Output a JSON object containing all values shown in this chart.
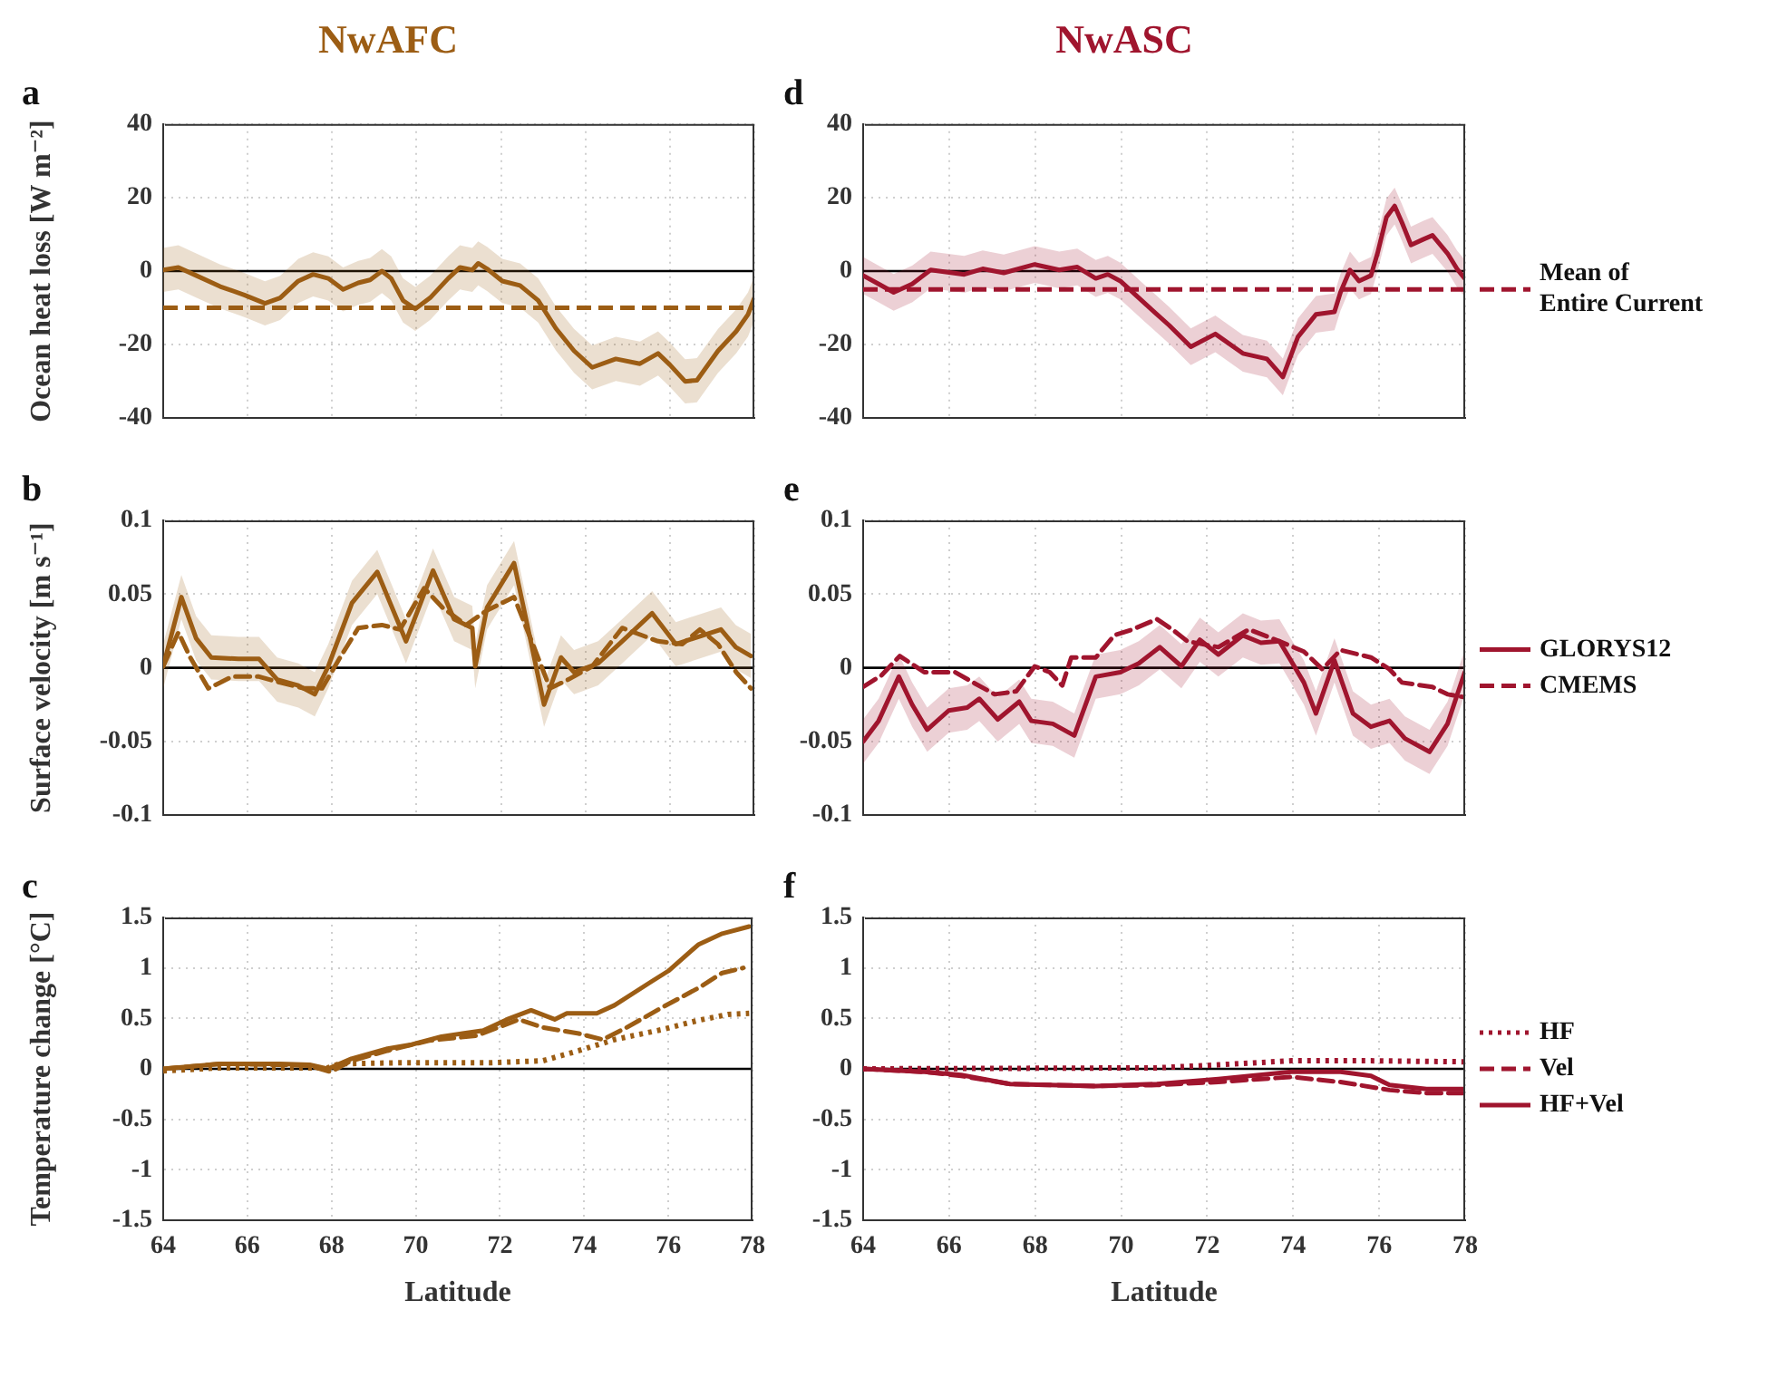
{
  "chart_data": [
    {
      "type": "line",
      "title": "NwAFC",
      "subtitle": "a",
      "ylabel": "Ocean heat loss [W m⁻²]",
      "xlim": [
        64,
        78
      ],
      "xticks": [
        64,
        66,
        68,
        70,
        72,
        74,
        76,
        78
      ],
      "ylim": [
        -40,
        40
      ],
      "yticks": [
        -40,
        -20,
        0,
        20,
        40
      ],
      "grid": true,
      "tick_labels": "y",
      "ref_lines": [
        {
          "axis": "y",
          "value": 0,
          "color": "#000000"
        },
        {
          "axis": "y",
          "value": -10,
          "color": "#9c5d14",
          "line_style": "dashed"
        }
      ],
      "series": [
        {
          "color": "#9c5d14",
          "line_style": "solid",
          "x": [
            64,
            64.36,
            64.78,
            65.35,
            65.92,
            66.41,
            66.77,
            67.2,
            67.55,
            67.91,
            68.26,
            68.62,
            68.9,
            69.18,
            69.4,
            69.68,
            69.97,
            70.32,
            70.75,
            71.03,
            71.32,
            71.46,
            71.67,
            72.03,
            72.45,
            72.88,
            73.3,
            73.73,
            74.16,
            74.72,
            75.29,
            75.72,
            76,
            76.36,
            76.64,
            77.14,
            77.57,
            77.85,
            78
          ],
          "values": [
            0.3,
            1,
            -1.2,
            -4.2,
            -6.5,
            -8.8,
            -7.3,
            -2.7,
            -0.9,
            -2,
            -5,
            -3.2,
            -2.4,
            0,
            -2,
            -8,
            -10.3,
            -7.3,
            -2,
            1,
            0.3,
            2.1,
            0.6,
            -2.7,
            -3.9,
            -8,
            -15.6,
            -21.7,
            -26.2,
            -23.9,
            -25.2,
            -22.4,
            -25.5,
            -30,
            -29.7,
            -21.7,
            -16.4,
            -11.8,
            -7.3
          ],
          "lower": [
            -5.7,
            -5,
            -7.2,
            -10.2,
            -12.5,
            -14.8,
            -13.3,
            -8.7,
            -6.9,
            -8,
            -11,
            -9.2,
            -8.4,
            -6,
            -8,
            -14,
            -16.3,
            -13.3,
            -8,
            -5,
            -5.7,
            -3.9,
            -5.4,
            -8.7,
            -9.9,
            -14,
            -21.6,
            -27.7,
            -32.2,
            -29.9,
            -31.2,
            -28.4,
            -31.5,
            -36,
            -35.7,
            -27.7,
            -22.4,
            -17.8,
            -13.3
          ],
          "upper": [
            6.3,
            7,
            4.8,
            1.8,
            -0.5,
            -2.8,
            -1.3,
            3.3,
            5.1,
            4,
            1,
            2.8,
            3.6,
            6,
            4,
            -2,
            -4.3,
            -1.3,
            4,
            7,
            6.3,
            8.1,
            6.6,
            3.3,
            2.1,
            -2,
            -9.6,
            -15.7,
            -20.2,
            -17.9,
            -19.2,
            -16.4,
            -19.5,
            -24,
            -23.7,
            -15.7,
            -10.4,
            -5.8,
            -1.3
          ]
        }
      ]
    },
    {
      "type": "line",
      "subtitle": "b",
      "ylabel": "Surface velocity [m s⁻¹]",
      "xlim": [
        64,
        78
      ],
      "xticks": [
        64,
        66,
        68,
        70,
        72,
        74,
        76,
        78
      ],
      "ylim": [
        -0.1,
        0.1
      ],
      "yticks": [
        -0.1,
        -0.05,
        0,
        0.05,
        0.1
      ],
      "grid": true,
      "tick_labels": "y",
      "ref_lines": [
        {
          "axis": "y",
          "value": 0,
          "color": "#000000"
        }
      ],
      "series": [
        {
          "color": "#9c5d14",
          "line_style": "solid",
          "x": [
            64,
            64.43,
            64.78,
            65.14,
            65.78,
            66.27,
            66.7,
            67.2,
            67.59,
            67.91,
            68.47,
            69.07,
            69.75,
            70.39,
            70.89,
            71.32,
            71.39,
            71.67,
            72.31,
            72.66,
            73.02,
            73.42,
            73.73,
            74.3,
            74.87,
            75.58,
            76.14,
            76.78,
            77.21,
            77.56,
            77.92
          ],
          "values": [
            0.001,
            0.048,
            0.02,
            0.007,
            0.006,
            0.006,
            -0.008,
            -0.012,
            -0.018,
            0.001,
            0.044,
            0.065,
            0.018,
            0.066,
            0.033,
            0.027,
            0.001,
            0.041,
            0.071,
            0.024,
            -0.025,
            0.007,
            -0.003,
            0.003,
            0.018,
            0.037,
            0.016,
            0.022,
            0.026,
            0.014,
            0.008
          ],
          "lower": [
            -0.014,
            0.033,
            0.005,
            -0.008,
            -0.009,
            -0.009,
            -0.023,
            -0.027,
            -0.033,
            -0.014,
            0.029,
            0.05,
            0.003,
            0.051,
            0.018,
            0.012,
            -0.014,
            0.026,
            0.056,
            0.009,
            -0.04,
            -0.008,
            -0.018,
            -0.012,
            0.003,
            0.022,
            0.001,
            0.007,
            0.011,
            -0.001,
            -0.007
          ],
          "upper": [
            0.016,
            0.063,
            0.035,
            0.022,
            0.021,
            0.021,
            0.007,
            0.003,
            -0.003,
            0.016,
            0.059,
            0.08,
            0.033,
            0.081,
            0.048,
            0.042,
            0.016,
            0.056,
            0.086,
            0.039,
            -0.01,
            0.022,
            0.012,
            0.018,
            0.033,
            0.052,
            0.031,
            0.037,
            0.041,
            0.029,
            0.023
          ]
        },
        {
          "color": "#9c5d14",
          "line_style": "dashed",
          "x": [
            64,
            64.36,
            64.64,
            65.07,
            65.63,
            66.27,
            66.77,
            67.34,
            67.76,
            68.19,
            68.62,
            69.18,
            69.61,
            70.18,
            70.61,
            71.17,
            71.67,
            72.31,
            72.81,
            73.16,
            73.59,
            74.16,
            74.87,
            75.72,
            76.29,
            76.71,
            77.14,
            77.57,
            77.92
          ],
          "values": [
            0.001,
            0.024,
            0.007,
            -0.014,
            -0.006,
            -0.006,
            -0.01,
            -0.014,
            -0.014,
            0.007,
            0.027,
            0.029,
            0.026,
            0.054,
            0.041,
            0.029,
            0.039,
            0.048,
            0.012,
            -0.014,
            -0.008,
            0.001,
            0.027,
            0.018,
            0.016,
            0.026,
            0.016,
            -0.003,
            -0.014
          ]
        }
      ]
    },
    {
      "type": "line",
      "subtitle": "c",
      "xlabel": "Latitude",
      "ylabel": "Temperature change [°C]",
      "xlim": [
        64,
        78
      ],
      "xticks": [
        64,
        66,
        68,
        70,
        72,
        74,
        76,
        78
      ],
      "ylim": [
        -1.5,
        1.5
      ],
      "yticks": [
        -1.5,
        -1,
        -0.5,
        0,
        0.5,
        1,
        1.5
      ],
      "grid": true,
      "ref_lines": [
        {
          "axis": "y",
          "value": 0,
          "color": "#000000"
        }
      ],
      "series": [
        {
          "color": "#9c5d14",
          "line_style": "dotted",
          "x": [
            64,
            65.35,
            67.91,
            68.19,
            69.61,
            71.74,
            73.02,
            73.87,
            74.72,
            75.86,
            76.71,
            77.42,
            77.92
          ],
          "values": [
            -0.02,
            0.01,
            0.01,
            0.05,
            0.06,
            0.06,
            0.08,
            0.18,
            0.29,
            0.39,
            0.48,
            0.54,
            0.55
          ]
        },
        {
          "color": "#9c5d14",
          "line_style": "dashed",
          "x": [
            64,
            65.35,
            66.77,
            67.48,
            67.98,
            68.47,
            69.33,
            70.32,
            71.46,
            72.45,
            73.02,
            73.87,
            74.44,
            75.01,
            75.86,
            76.71,
            77.28,
            77.78
          ],
          "values": [
            0,
            0.05,
            0.04,
            0.03,
            -0.03,
            0.08,
            0.18,
            0.28,
            0.33,
            0.49,
            0.41,
            0.35,
            0.29,
            0.41,
            0.61,
            0.8,
            0.95,
            1
          ]
        },
        {
          "color": "#9c5d14",
          "line_style": "solid",
          "x": [
            64,
            65.35,
            66.77,
            67.48,
            67.91,
            68.47,
            69.33,
            69.9,
            70.61,
            71.6,
            72.17,
            72.74,
            73.3,
            73.59,
            74.3,
            74.72,
            75.58,
            76,
            76.71,
            77.28,
            77.92
          ],
          "values": [
            0,
            0.05,
            0.05,
            0.04,
            0,
            0.1,
            0.2,
            0.24,
            0.32,
            0.38,
            0.49,
            0.58,
            0.49,
            0.55,
            0.55,
            0.63,
            0.86,
            0.97,
            1.23,
            1.34,
            1.41
          ]
        }
      ]
    },
    {
      "type": "line",
      "title": "NwASC",
      "subtitle": "d",
      "xlim": [
        64,
        78
      ],
      "xticks": [
        64,
        66,
        68,
        70,
        72,
        74,
        76,
        78
      ],
      "ylim": [
        -40,
        40
      ],
      "yticks": [
        -40,
        -20,
        0,
        20,
        40
      ],
      "grid": true,
      "tick_labels": "y",
      "ref_lines": [
        {
          "axis": "y",
          "value": 0,
          "color": "#000000"
        },
        {
          "axis": "y",
          "value": -5,
          "color": "#a0152e",
          "line_style": "dashed",
          "label": "Mean of Entire Current"
        }
      ],
      "series": [
        {
          "color": "#a0152e",
          "line_style": "solid",
          "x": [
            64,
            64.36,
            64.71,
            65.14,
            65.57,
            66.35,
            66.78,
            67.27,
            67.99,
            68.56,
            68.98,
            69.41,
            69.69,
            69.98,
            70.55,
            71.12,
            71.62,
            72.19,
            72.83,
            73.39,
            73.76,
            74.11,
            74.53,
            74.96,
            75.1,
            75.32,
            75.53,
            75.81,
            75.96,
            76.17,
            76.36,
            76.53,
            76.74,
            77.02,
            77.24,
            77.59,
            77.81,
            77.99
          ],
          "values": [
            -1.2,
            -3.5,
            -5.8,
            -3.5,
            0.3,
            -0.9,
            0.6,
            -0.5,
            1.8,
            0.3,
            1.1,
            -2,
            -0.9,
            -2.7,
            -8.8,
            -14.8,
            -20.6,
            -17.1,
            -22.4,
            -23.9,
            -28.8,
            -17.9,
            -11.8,
            -11.1,
            -5.8,
            0.3,
            -2.7,
            -1.2,
            4.8,
            14.7,
            17.7,
            13.2,
            7.1,
            8.6,
            9.7,
            4.8,
            0.6,
            -2
          ],
          "lower": [
            -6.2,
            -8.5,
            -10.8,
            -8.5,
            -4.7,
            -5.9,
            -4.4,
            -5.5,
            -3.2,
            -4.7,
            -3.9,
            -7,
            -5.9,
            -7.7,
            -13.8,
            -19.8,
            -25.6,
            -22.1,
            -27.4,
            -28.9,
            -33.8,
            -22.9,
            -16.8,
            -16.1,
            -10.8,
            -4.7,
            -7.7,
            -6.2,
            -0.2,
            9.7,
            12.7,
            8.2,
            2.1,
            3.6,
            4.7,
            -0.2,
            -4.4,
            -7
          ],
          "upper": [
            3.8,
            1.5,
            -0.8,
            1.5,
            5.3,
            4.1,
            5.6,
            4.5,
            6.8,
            5.3,
            6.1,
            3,
            4.1,
            2.3,
            -3.8,
            -9.8,
            -15.6,
            -12.1,
            -17.4,
            -18.9,
            -23.8,
            -12.9,
            -6.8,
            -6.1,
            -0.8,
            5.3,
            2.3,
            3.8,
            9.8,
            19.7,
            22.7,
            18.2,
            12.1,
            13.6,
            14.7,
            9.8,
            5.6,
            3
          ]
        }
      ]
    },
    {
      "type": "line",
      "subtitle": "e",
      "xlim": [
        64,
        78
      ],
      "xticks": [
        64,
        66,
        68,
        70,
        72,
        74,
        76,
        78
      ],
      "ylim": [
        -0.1,
        0.1
      ],
      "yticks": [
        -0.1,
        -0.05,
        0,
        0.05,
        0.1
      ],
      "grid": true,
      "tick_labels": "y",
      "legend": "right",
      "ref_lines": [
        {
          "axis": "y",
          "value": 0,
          "color": "#000000"
        }
      ],
      "series": [
        {
          "name": "GLORYS12",
          "color": "#a0152e",
          "line_style": "solid",
          "x": [
            64,
            64.36,
            64.83,
            65.14,
            65.49,
            65.99,
            66.42,
            66.7,
            67.13,
            67.63,
            67.91,
            68.41,
            68.91,
            69.41,
            69.98,
            70.41,
            70.9,
            71.4,
            71.83,
            72.26,
            72.83,
            73.25,
            73.68,
            74.25,
            74.53,
            74.96,
            75.39,
            75.81,
            76.24,
            76.6,
            77.17,
            77.59,
            77.99
          ],
          "values": [
            -0.05,
            -0.036,
            -0.006,
            -0.025,
            -0.042,
            -0.029,
            -0.027,
            -0.021,
            -0.035,
            -0.023,
            -0.036,
            -0.038,
            -0.046,
            -0.006,
            -0.003,
            0.003,
            0.014,
            0.001,
            0.019,
            0.009,
            0.022,
            0.017,
            0.018,
            -0.01,
            -0.031,
            0.005,
            -0.031,
            -0.04,
            -0.036,
            -0.048,
            -0.057,
            -0.038,
            -0.003
          ],
          "lower": [
            -0.065,
            -0.051,
            -0.021,
            -0.04,
            -0.057,
            -0.044,
            -0.042,
            -0.036,
            -0.05,
            -0.038,
            -0.051,
            -0.053,
            -0.061,
            -0.021,
            -0.018,
            -0.012,
            -0.001,
            -0.014,
            0.004,
            -0.006,
            0.007,
            0.002,
            0.003,
            -0.025,
            -0.046,
            -0.01,
            -0.046,
            -0.055,
            -0.051,
            -0.063,
            -0.072,
            -0.053,
            -0.018
          ],
          "upper": [
            -0.035,
            -0.021,
            0.009,
            -0.01,
            -0.027,
            -0.014,
            -0.012,
            -0.006,
            -0.02,
            -0.008,
            -0.021,
            -0.023,
            -0.031,
            0.009,
            0.012,
            0.018,
            0.029,
            0.016,
            0.034,
            0.024,
            0.037,
            0.032,
            0.033,
            0.005,
            -0.016,
            0.02,
            -0.016,
            -0.025,
            -0.021,
            -0.033,
            -0.042,
            -0.023,
            0.012
          ]
        },
        {
          "name": "CMEMS",
          "color": "#a0152e",
          "line_style": "dashed",
          "x": [
            64,
            64.43,
            64.85,
            65.42,
            66.14,
            66.56,
            67.06,
            67.56,
            67.99,
            68.34,
            68.63,
            68.84,
            69.41,
            69.84,
            70.26,
            70.83,
            71.19,
            71.54,
            72.26,
            72.97,
            73.68,
            74.25,
            74.68,
            75.1,
            75.81,
            76.24,
            76.53,
            77.24,
            77.59,
            77.99
          ],
          "values": [
            -0.013,
            -0.005,
            0.008,
            -0.003,
            -0.003,
            -0.01,
            -0.018,
            -0.016,
            0.001,
            -0.003,
            -0.012,
            0.007,
            0.007,
            0.022,
            0.026,
            0.033,
            0.026,
            0.018,
            0.014,
            0.026,
            0.018,
            0.011,
            -0.001,
            0.012,
            0.007,
            -0.001,
            -0.01,
            -0.013,
            -0.018,
            -0.02
          ]
        }
      ]
    },
    {
      "type": "line",
      "subtitle": "f",
      "xlabel": "Latitude",
      "xlim": [
        64,
        78
      ],
      "xticks": [
        64,
        66,
        68,
        70,
        72,
        74,
        76,
        78
      ],
      "ylim": [
        -1.5,
        1.5
      ],
      "yticks": [
        -1.5,
        -1,
        -0.5,
        0,
        0.5,
        1,
        1.5
      ],
      "grid": true,
      "legend": "right",
      "ref_lines": [
        {
          "axis": "y",
          "value": 0,
          "color": "#000000"
        }
      ],
      "series": [
        {
          "name": "HF",
          "color": "#a0152e",
          "line_style": "dotted",
          "x": [
            64,
            70.83,
            72.26,
            73.96,
            75.81,
            77.99
          ],
          "values": [
            0,
            0.01,
            0.04,
            0.08,
            0.08,
            0.07
          ]
        },
        {
          "name": "Vel",
          "color": "#a0152e",
          "line_style": "dashed",
          "x": [
            64,
            65.42,
            66.28,
            67.42,
            69.41,
            70.83,
            72.26,
            73.96,
            75.1,
            76.24,
            77.1,
            77.99
          ],
          "values": [
            0,
            -0.03,
            -0.07,
            -0.15,
            -0.17,
            -0.16,
            -0.13,
            -0.08,
            -0.13,
            -0.21,
            -0.24,
            -0.24
          ]
        },
        {
          "name": "HF+Vel",
          "color": "#a0152e",
          "line_style": "solid",
          "x": [
            64,
            65.42,
            66.28,
            67.42,
            69.41,
            70.83,
            72.26,
            73.96,
            75.1,
            75.81,
            76.24,
            77.1,
            77.99
          ],
          "values": [
            0,
            -0.03,
            -0.06,
            -0.15,
            -0.17,
            -0.15,
            -0.1,
            -0.03,
            -0.03,
            -0.07,
            -0.16,
            -0.2,
            -0.2
          ]
        }
      ]
    }
  ]
}
